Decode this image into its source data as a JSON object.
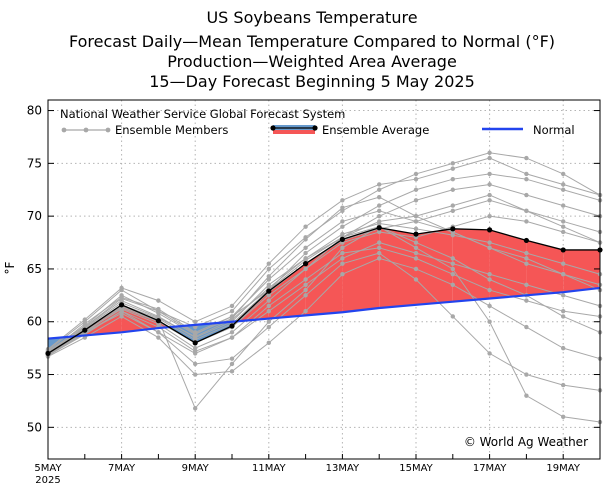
{
  "chart_data": {
    "type": "line",
    "title_lines": [
      "US Soybeans Temperature",
      "Forecast Daily—Mean Temperature Compared to Normal (°F)",
      "Production—Weighted Area Average",
      "15—Day Forecast Beginning 5 May 2025"
    ],
    "source_label": "National Weather Service Global Forecast System",
    "ylabel": "°F",
    "ylim": [
      47,
      81
    ],
    "xlim": [
      0,
      15
    ],
    "yticks": [
      50,
      55,
      60,
      65,
      70,
      75,
      80
    ],
    "xticks": [
      {
        "day": 0,
        "label": "5MAY"
      },
      {
        "day": 2,
        "label": "7MAY"
      },
      {
        "day": 4,
        "label": "9MAY"
      },
      {
        "day": 6,
        "label": "11MAY"
      },
      {
        "day": 8,
        "label": "13MAY"
      },
      {
        "day": 10,
        "label": "15MAY"
      },
      {
        "day": 12,
        "label": "17MAY"
      },
      {
        "day": 14,
        "label": "19MAY"
      }
    ],
    "xtick_sublabel": "2025",
    "legend": {
      "members": "Ensemble Members",
      "average": "Ensemble Average",
      "normal": "Normal"
    },
    "copyright": "© World Ag Weather",
    "colors": {
      "members": "#a8a8a8",
      "average": "#000000",
      "normal": "#2244ee",
      "above": "#f55656",
      "below": "#6699cc",
      "grid": "#b4b4b4"
    },
    "x": [
      0,
      1,
      2,
      3,
      4,
      5,
      6,
      7,
      8,
      9,
      10,
      11,
      12,
      13,
      14,
      15
    ],
    "series": [
      {
        "name": "Ensemble Average",
        "values": [
          57.0,
          59.2,
          61.6,
          60.1,
          58.0,
          59.6,
          62.9,
          65.5,
          67.8,
          68.9,
          68.3,
          68.8,
          68.7,
          67.7,
          66.8,
          66.8
        ]
      },
      {
        "name": "Normal",
        "values": [
          58.4,
          58.7,
          59.0,
          59.4,
          59.7,
          60.0,
          60.3,
          60.6,
          60.9,
          61.3,
          61.6,
          61.9,
          62.2,
          62.5,
          62.8,
          63.2
        ]
      }
    ],
    "members": [
      [
        57.0,
        59.5,
        62.0,
        60.5,
        58.5,
        60.0,
        63.5,
        66.0,
        68.0,
        69.5,
        70.0,
        71.0,
        72.0,
        70.5,
        69.0,
        67.5
      ],
      [
        56.8,
        58.8,
        61.0,
        59.5,
        57.2,
        58.5,
        61.5,
        64.0,
        66.5,
        67.0,
        66.0,
        64.5,
        63.0,
        62.0,
        61.0,
        60.5
      ],
      [
        57.3,
        60.0,
        63.0,
        61.0,
        59.5,
        61.0,
        65.0,
        68.0,
        70.5,
        72.5,
        74.0,
        75.0,
        76.0,
        75.5,
        74.0,
        72.0
      ],
      [
        56.9,
        59.0,
        60.8,
        59.0,
        56.0,
        56.5,
        59.5,
        62.5,
        65.5,
        66.5,
        64.0,
        60.5,
        57.0,
        55.0,
        54.0,
        53.5
      ],
      [
        57.1,
        59.3,
        61.5,
        60.0,
        58.0,
        59.5,
        62.5,
        65.0,
        68.0,
        70.0,
        71.5,
        72.5,
        73.0,
        72.0,
        71.0,
        70.0
      ],
      [
        57.0,
        59.8,
        62.3,
        61.2,
        59.0,
        60.5,
        64.0,
        67.0,
        69.5,
        70.5,
        69.5,
        68.5,
        67.0,
        65.5,
        64.5,
        63.0
      ],
      [
        56.7,
        58.5,
        60.5,
        58.5,
        55.0,
        55.3,
        58.0,
        61.0,
        64.5,
        66.0,
        65.0,
        63.5,
        61.5,
        59.5,
        57.5,
        56.5
      ],
      [
        57.2,
        59.6,
        62.5,
        60.8,
        58.8,
        60.5,
        63.0,
        66.5,
        69.0,
        71.0,
        72.5,
        73.5,
        74.0,
        73.5,
        72.5,
        71.5
      ],
      [
        57.0,
        59.1,
        61.2,
        59.8,
        57.5,
        59.0,
        62.0,
        65.0,
        67.5,
        68.5,
        68.0,
        69.0,
        70.0,
        69.5,
        68.5,
        67.5
      ],
      [
        56.8,
        58.9,
        61.0,
        59.0,
        57.0,
        58.5,
        61.0,
        63.5,
        66.0,
        67.5,
        66.5,
        65.5,
        64.5,
        63.5,
        62.5,
        61.5
      ],
      [
        57.4,
        60.2,
        63.2,
        62.0,
        60.0,
        61.5,
        65.5,
        69.0,
        71.5,
        73.0,
        73.5,
        74.5,
        75.5,
        74.0,
        73.0,
        72.0
      ],
      [
        57.0,
        59.3,
        61.6,
        60.3,
        58.3,
        59.8,
        63.0,
        65.8,
        68.0,
        69.0,
        67.5,
        66.0,
        64.0,
        62.5,
        60.5,
        59.0
      ],
      [
        56.9,
        59.0,
        61.3,
        60.0,
        58.0,
        59.5,
        62.8,
        65.5,
        67.7,
        68.8,
        69.5,
        70.5,
        71.5,
        70.5,
        69.5,
        68.5
      ],
      [
        57.1,
        59.4,
        61.8,
        60.4,
        58.6,
        60.2,
        63.2,
        66.0,
        68.3,
        69.3,
        68.8,
        68.2,
        67.5,
        66.5,
        65.5,
        64.5
      ],
      [
        57.0,
        59.2,
        61.4,
        60.2,
        51.8,
        56.0,
        60.0,
        63.0,
        67.0,
        69.0,
        67.0,
        65.0,
        60.0,
        53.0,
        51.0,
        50.5
      ],
      [
        57.0,
        59.5,
        62.2,
        61.0,
        58.9,
        60.3,
        64.3,
        67.8,
        70.8,
        71.8,
        70.0,
        68.5,
        67.0,
        66.0,
        64.5,
        63.5
      ]
    ]
  }
}
